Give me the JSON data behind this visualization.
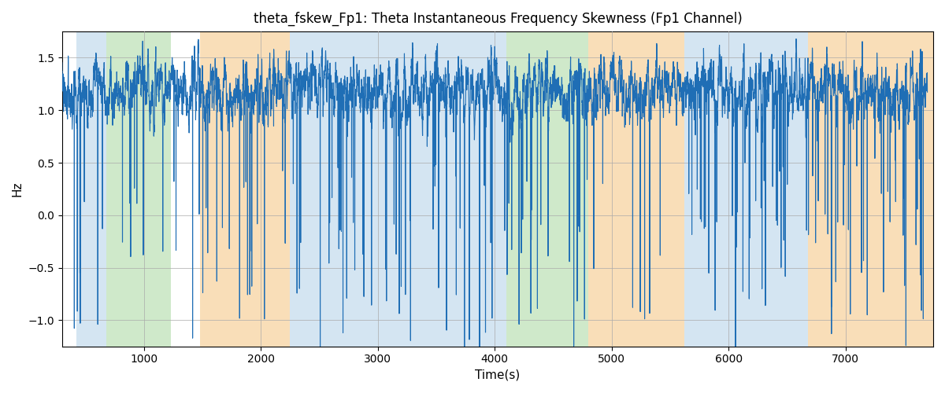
{
  "title": "theta_fskew_Fp1: Theta Instantaneous Frequency Skewness (Fp1 Channel)",
  "xlabel": "Time(s)",
  "ylabel": "Hz",
  "xlim": [
    300,
    7750
  ],
  "ylim": [
    -1.25,
    1.75
  ],
  "line_color": "#1f6eb5",
  "line_width": 0.8,
  "background_color": "#ffffff",
  "grid_color": "#aaaaaa",
  "bg_regions": [
    {
      "start": 420,
      "end": 680,
      "color": "#b8d4ea",
      "alpha": 0.6
    },
    {
      "start": 680,
      "end": 1230,
      "color": "#a8d8a0",
      "alpha": 0.55
    },
    {
      "start": 1480,
      "end": 2250,
      "color": "#f5c98a",
      "alpha": 0.6
    },
    {
      "start": 2250,
      "end": 3850,
      "color": "#b8d4ea",
      "alpha": 0.6
    },
    {
      "start": 3850,
      "end": 4100,
      "color": "#b8d4ea",
      "alpha": 0.6
    },
    {
      "start": 4100,
      "end": 4800,
      "color": "#a8d8a0",
      "alpha": 0.55
    },
    {
      "start": 4800,
      "end": 5620,
      "color": "#f5c98a",
      "alpha": 0.6
    },
    {
      "start": 5620,
      "end": 6480,
      "color": "#b8d4ea",
      "alpha": 0.6
    },
    {
      "start": 6480,
      "end": 6680,
      "color": "#b8d4ea",
      "alpha": 0.6
    },
    {
      "start": 6680,
      "end": 7750,
      "color": "#f5c98a",
      "alpha": 0.6
    }
  ],
  "yticks": [
    -1.0,
    -0.5,
    0.0,
    0.5,
    1.0,
    1.5
  ],
  "xticks": [
    1000,
    2000,
    3000,
    4000,
    5000,
    6000,
    7000
  ],
  "n_points": 7700,
  "seed": 7
}
